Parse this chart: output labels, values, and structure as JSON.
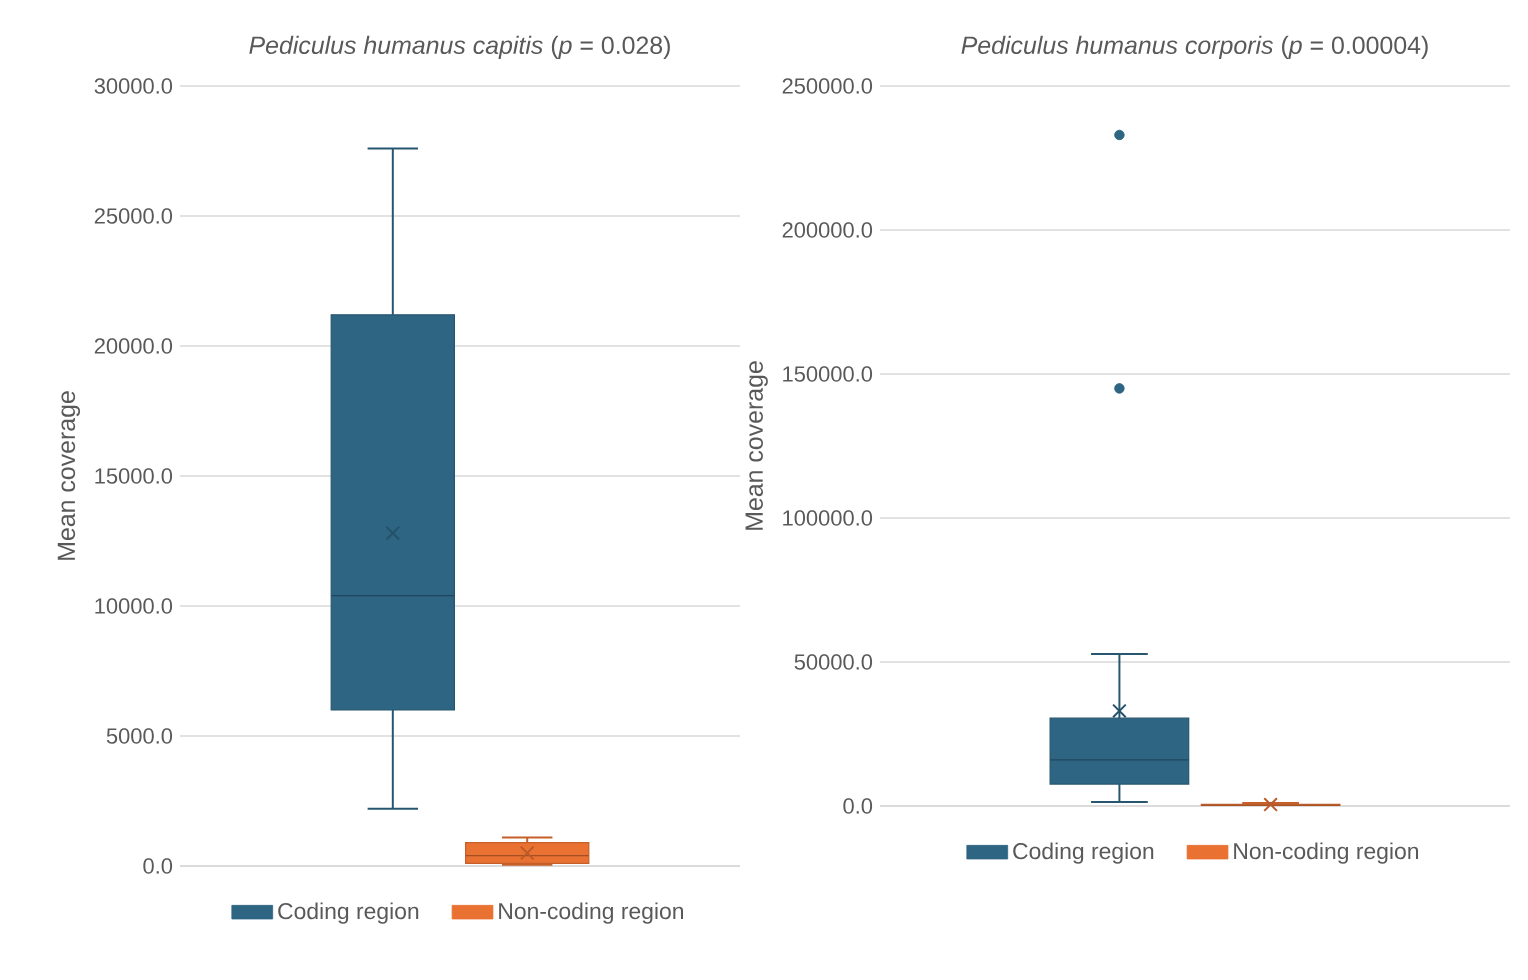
{
  "chart_data": [
    {
      "type": "box",
      "title": "*Pediculus humanus capitis* (*p* = 0.028)",
      "ylabel": "Mean coverage",
      "categories": [
        null
      ],
      "grid": "y",
      "legend": "bottom",
      "ylim": [
        0,
        30000
      ],
      "yticks": [
        {
          "value": 0,
          "label": "0.0"
        },
        {
          "value": 5000,
          "label": "5000.0"
        },
        {
          "value": 10000,
          "label": "10000.0"
        },
        {
          "value": 15000,
          "label": "15000.0"
        },
        {
          "value": 20000,
          "label": "20000.0"
        },
        {
          "value": 25000,
          "label": "25000.0"
        },
        {
          "value": 30000,
          "label": "30000.0"
        }
      ],
      "series": [
        {
          "name": "Coding region",
          "color": "#2e6583",
          "boxes": [
            {
              "low": 2200,
              "q1": 6000,
              "median": 10400,
              "q3": 21200,
              "high": 27600,
              "mean": 12800
            }
          ]
        },
        {
          "name": "Non-coding region",
          "color": "#e97132",
          "boxes": [
            {
              "low": 50,
              "q1": 100,
              "median": 400,
              "q3": 900,
              "high": 1100,
              "mean": 500
            }
          ]
        }
      ]
    },
    {
      "type": "box",
      "title": "*Pediculus humanus corporis* (*p* = 0.00004)",
      "ylabel": "Mean coverage",
      "categories": [
        null
      ],
      "grid": "y",
      "legend": "bottom",
      "ylim": [
        0,
        250000
      ],
      "yticks": [
        {
          "value": 0,
          "label": "0.0"
        },
        {
          "value": 50000,
          "label": "50000.0"
        },
        {
          "value": 100000,
          "label": "100000.0"
        },
        {
          "value": 150000,
          "label": "150000.0"
        },
        {
          "value": 200000,
          "label": "200000.0"
        },
        {
          "value": 250000,
          "label": "250000.0"
        }
      ],
      "series": [
        {
          "name": "Coding region",
          "color": "#2e6583",
          "boxes": [
            {
              "low": 1400,
              "q1": 7600,
              "median": 16000,
              "q3": 30500,
              "high": 52800,
              "mean": 33000,
              "outliers": [
                233000,
                145000
              ]
            }
          ]
        },
        {
          "name": "Non-coding region",
          "color": "#e97132",
          "boxes": [
            {
              "low": 0,
              "q1": 100,
              "median": 300,
              "q3": 600,
              "high": 1000,
              "mean": 500
            }
          ]
        }
      ]
    }
  ]
}
